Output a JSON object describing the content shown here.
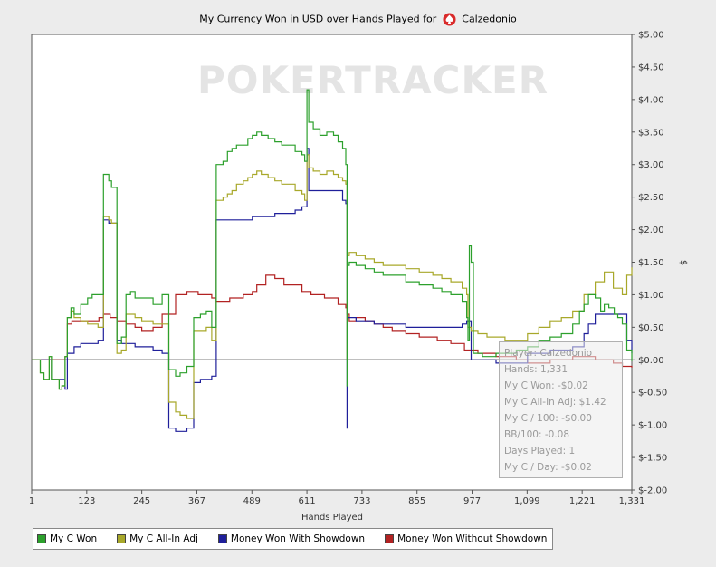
{
  "page": {
    "title_prefix": "My Currency Won in USD over Hands Played for",
    "player_name": "Calzedonio",
    "watermark": "POKERTRACKER"
  },
  "tooltip": {
    "lines": [
      "Player: Calzedonio",
      "Hands: 1,331",
      "My C Won: -$0.02",
      "My C All-In Adj: $1.42",
      "My C / 100: -$0.00",
      "BB/100: -0.08",
      "Days Played: 1",
      "My C / Day: -$0.02"
    ]
  },
  "chart_data": {
    "type": "line",
    "xlabel": "Hands Played",
    "ylabel": "$",
    "xlim": [
      1,
      1331
    ],
    "ylim": [
      -2.0,
      5.0
    ],
    "x_ticks": [
      1,
      123,
      245,
      367,
      489,
      611,
      733,
      855,
      977,
      1099,
      1221,
      1331
    ],
    "x_tick_labels": [
      "1",
      "123",
      "245",
      "367",
      "489",
      "611",
      "733",
      "855",
      "977",
      "1,099",
      "1,221",
      "1,331"
    ],
    "y_ticks": [
      -2.0,
      -1.5,
      -1.0,
      -0.5,
      0.0,
      0.5,
      1.0,
      1.5,
      2.0,
      2.5,
      3.0,
      3.5,
      4.0,
      4.5,
      5.0
    ],
    "y_tick_labels": [
      "$-2.00",
      "$-1.50",
      "$-1.00",
      "$-0.50",
      "$0.00",
      "$0.50",
      "$1.00",
      "$1.50",
      "$2.00",
      "$2.50",
      "$3.00",
      "$3.50",
      "$4.00",
      "$4.50",
      "$5.00"
    ],
    "grid": false,
    "legend_position": "bottom-left",
    "series": [
      {
        "name": "My C Won",
        "color": "#2ca02c",
        "x": [
          1,
          20,
          28,
          40,
          45,
          58,
          62,
          68,
          75,
          80,
          88,
          95,
          110,
          125,
          135,
          148,
          160,
          172,
          178,
          190,
          200,
          210,
          220,
          230,
          245,
          270,
          290,
          305,
          320,
          330,
          345,
          360,
          375,
          388,
          400,
          410,
          425,
          435,
          445,
          455,
          470,
          480,
          490,
          500,
          510,
          525,
          540,
          555,
          570,
          585,
          600,
          606,
          611,
          615,
          625,
          640,
          655,
          670,
          680,
          690,
          697,
          700,
          702,
          705,
          720,
          740,
          760,
          780,
          800,
          830,
          860,
          890,
          910,
          930,
          955,
          965,
          968,
          971,
          975,
          980,
          990,
          1000,
          1015,
          1030,
          1050,
          1075,
          1100,
          1125,
          1150,
          1175,
          1200,
          1215,
          1225,
          1235,
          1250,
          1262,
          1270,
          1280,
          1292,
          1300,
          1310,
          1320,
          1331
        ],
        "y": [
          0.0,
          -0.2,
          -0.3,
          0.05,
          -0.3,
          -0.3,
          -0.45,
          -0.4,
          0.05,
          0.65,
          0.8,
          0.7,
          0.85,
          0.95,
          1.0,
          1.0,
          2.85,
          2.75,
          2.65,
          0.25,
          0.35,
          1.0,
          1.05,
          0.95,
          0.95,
          0.85,
          1.0,
          -0.15,
          -0.25,
          -0.2,
          -0.1,
          0.65,
          0.7,
          0.75,
          0.5,
          3.0,
          3.05,
          3.2,
          3.25,
          3.3,
          3.3,
          3.4,
          3.45,
          3.5,
          3.45,
          3.4,
          3.35,
          3.3,
          3.3,
          3.2,
          3.15,
          3.05,
          4.15,
          3.65,
          3.55,
          3.45,
          3.5,
          3.45,
          3.35,
          3.25,
          3.0,
          -0.4,
          1.45,
          1.5,
          1.45,
          1.4,
          1.35,
          1.3,
          1.3,
          1.2,
          1.15,
          1.1,
          1.05,
          1.0,
          0.9,
          0.65,
          0.3,
          1.75,
          1.5,
          0.1,
          0.1,
          0.05,
          0.05,
          0.1,
          0.1,
          0.15,
          0.2,
          0.3,
          0.35,
          0.4,
          0.55,
          0.75,
          0.85,
          1.0,
          0.95,
          0.75,
          0.85,
          0.8,
          0.7,
          0.65,
          0.55,
          0.15,
          -0.02
        ]
      },
      {
        "name": "My C All-In Adj",
        "color": "#a8a82a",
        "x": [
          1,
          20,
          28,
          40,
          45,
          58,
          62,
          68,
          75,
          80,
          88,
          95,
          110,
          125,
          135,
          148,
          160,
          172,
          178,
          190,
          200,
          210,
          220,
          230,
          245,
          270,
          290,
          305,
          320,
          330,
          345,
          360,
          375,
          388,
          400,
          410,
          425,
          435,
          445,
          455,
          470,
          480,
          490,
          500,
          510,
          525,
          540,
          555,
          570,
          585,
          600,
          606,
          611,
          615,
          625,
          640,
          655,
          670,
          680,
          690,
          697,
          700,
          702,
          705,
          720,
          740,
          760,
          780,
          800,
          830,
          860,
          890,
          910,
          930,
          955,
          965,
          968,
          975,
          990,
          1010,
          1030,
          1050,
          1075,
          1100,
          1125,
          1150,
          1175,
          1200,
          1225,
          1250,
          1270,
          1290,
          1310,
          1320,
          1331
        ],
        "y": [
          0.0,
          -0.2,
          -0.3,
          0.05,
          -0.3,
          -0.3,
          -0.45,
          -0.4,
          0.05,
          0.65,
          0.75,
          0.65,
          0.6,
          0.55,
          0.55,
          0.5,
          2.2,
          2.15,
          2.1,
          0.1,
          0.15,
          0.7,
          0.7,
          0.65,
          0.6,
          0.55,
          0.55,
          -0.65,
          -0.8,
          -0.85,
          -0.9,
          0.45,
          0.45,
          0.5,
          0.3,
          2.45,
          2.5,
          2.55,
          2.6,
          2.7,
          2.75,
          2.8,
          2.85,
          2.9,
          2.85,
          2.8,
          2.75,
          2.7,
          2.7,
          2.6,
          2.55,
          2.45,
          3.15,
          2.95,
          2.9,
          2.85,
          2.9,
          2.85,
          2.8,
          2.75,
          2.7,
          0.0,
          1.6,
          1.65,
          1.6,
          1.55,
          1.5,
          1.45,
          1.45,
          1.4,
          1.35,
          1.3,
          1.25,
          1.2,
          1.1,
          1.0,
          0.5,
          0.45,
          0.4,
          0.35,
          0.35,
          0.3,
          0.3,
          0.4,
          0.5,
          0.6,
          0.65,
          0.75,
          1.0,
          1.2,
          1.35,
          1.1,
          1.0,
          1.3,
          1.42
        ]
      },
      {
        "name": "Money Won With Showdown",
        "color": "#1f1f9a",
        "x": [
          1,
          40,
          45,
          58,
          75,
          80,
          95,
          110,
          125,
          148,
          160,
          172,
          178,
          190,
          200,
          230,
          245,
          270,
          290,
          305,
          320,
          330,
          345,
          360,
          375,
          400,
          410,
          440,
          470,
          490,
          500,
          540,
          555,
          585,
          600,
          606,
          611,
          615,
          650,
          680,
          690,
          697,
          700,
          702,
          705,
          720,
          740,
          760,
          800,
          830,
          860,
          900,
          930,
          955,
          960,
          965,
          975,
          990,
          1030,
          1075,
          1100,
          1125,
          1150,
          1200,
          1225,
          1235,
          1250,
          1270,
          1300,
          1310,
          1320,
          1331
        ],
        "y": [
          0.0,
          0.0,
          -0.3,
          -0.3,
          -0.45,
          0.1,
          0.2,
          0.25,
          0.25,
          0.3,
          2.15,
          2.1,
          2.1,
          0.3,
          0.25,
          0.2,
          0.2,
          0.15,
          0.1,
          -1.05,
          -1.1,
          -1.1,
          -1.05,
          -0.35,
          -0.3,
          -0.25,
          2.15,
          2.15,
          2.15,
          2.2,
          2.2,
          2.25,
          2.25,
          2.3,
          2.35,
          2.35,
          3.25,
          2.6,
          2.6,
          2.6,
          2.45,
          2.4,
          -1.05,
          0.65,
          0.65,
          0.6,
          0.6,
          0.55,
          0.55,
          0.5,
          0.5,
          0.5,
          0.5,
          0.55,
          0.55,
          0.6,
          0.0,
          0.0,
          -0.05,
          -0.05,
          0.1,
          0.1,
          0.15,
          0.2,
          0.4,
          0.55,
          0.7,
          0.7,
          0.7,
          0.7,
          0.3,
          0.1
        ]
      },
      {
        "name": "Money Won Without Showdown",
        "color": "#b22222",
        "x": [
          1,
          40,
          75,
          80,
          90,
          110,
          130,
          150,
          160,
          175,
          190,
          210,
          230,
          245,
          270,
          290,
          320,
          345,
          370,
          400,
          410,
          440,
          470,
          490,
          500,
          520,
          540,
          560,
          580,
          600,
          620,
          650,
          680,
          697,
          700,
          705,
          720,
          740,
          760,
          780,
          800,
          830,
          860,
          900,
          930,
          960,
          990,
          1030,
          1075,
          1100,
          1150,
          1200,
          1250,
          1290,
          1310,
          1331
        ],
        "y": [
          0.0,
          0.0,
          0.05,
          0.55,
          0.6,
          0.6,
          0.6,
          0.65,
          0.7,
          0.65,
          0.6,
          0.55,
          0.5,
          0.45,
          0.5,
          0.7,
          1.0,
          1.05,
          1.0,
          0.95,
          0.9,
          0.95,
          1.0,
          1.05,
          1.15,
          1.3,
          1.25,
          1.15,
          1.15,
          1.05,
          1.0,
          0.95,
          0.85,
          0.8,
          0.7,
          0.6,
          0.65,
          0.6,
          0.55,
          0.5,
          0.45,
          0.4,
          0.35,
          0.3,
          0.25,
          0.15,
          0.1,
          0.05,
          0.0,
          -0.05,
          0.0,
          0.05,
          0.0,
          -0.05,
          -0.1,
          -0.12
        ]
      }
    ]
  }
}
